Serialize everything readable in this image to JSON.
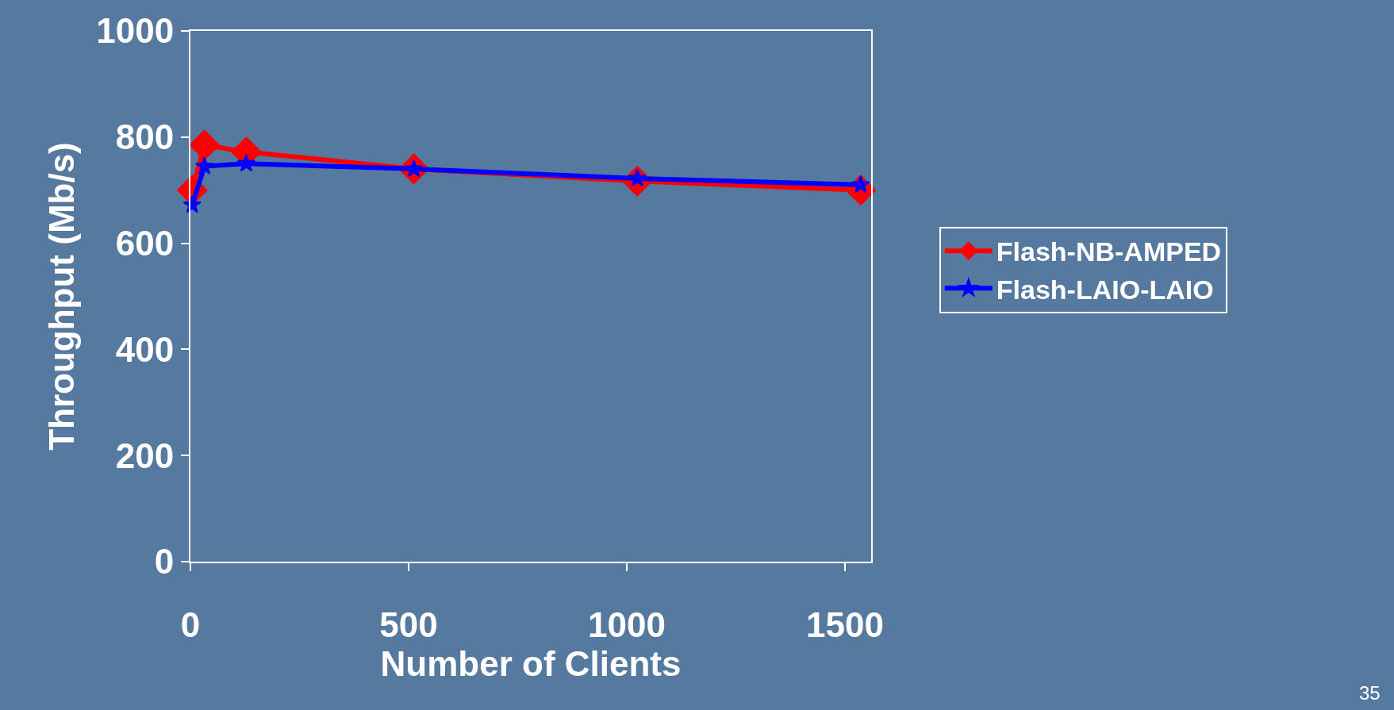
{
  "chart_data": {
    "type": "line",
    "xlabel": "Number of Clients",
    "ylabel": "Throughput (Mb/s)",
    "x": [
      4,
      32,
      128,
      512,
      1024,
      1536
    ],
    "series": [
      {
        "name": "Flash-NB-AMPED",
        "color": "#ff0000",
        "marker": "diamond",
        "values": [
          700,
          785,
          772,
          740,
          717,
          700
        ]
      },
      {
        "name": "Flash-LAIO-LAIO",
        "color": "#0000ff",
        "marker": "star",
        "values": [
          672,
          745,
          750,
          740,
          722,
          710
        ]
      }
    ],
    "xlim": [
      0,
      1560
    ],
    "xticks": [
      0,
      500,
      1000,
      1500
    ],
    "ylim": [
      0,
      1000
    ],
    "yticks": [
      0,
      200,
      400,
      600,
      800,
      1000
    ],
    "grid": false,
    "legend": "right",
    "line_style": "solid",
    "annotations": [
      "35"
    ]
  }
}
